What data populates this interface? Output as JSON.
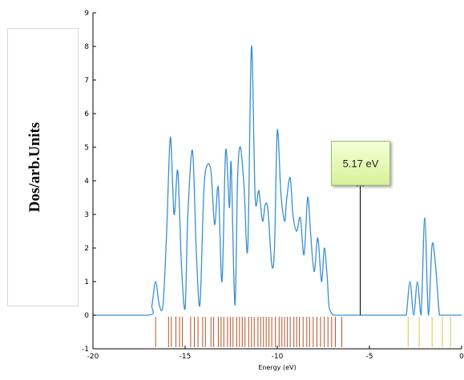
{
  "chart_data": {
    "type": "line",
    "title": "",
    "xlabel": "Energy (eV)",
    "ylabel": "Dos/arb.Units",
    "xlim": [
      -20,
      0
    ],
    "ylim": [
      -1,
      9
    ],
    "xticks": [
      -20,
      -15,
      -10,
      -5,
      0
    ],
    "yticks": [
      -1,
      0,
      1,
      2,
      3,
      4,
      5,
      6,
      7,
      8,
      9
    ],
    "grid": false,
    "series": [
      {
        "color": "#3a8fd0",
        "x": [
          -20,
          -17.0,
          -16.8,
          -16.6,
          -16.4,
          -16.2,
          -16.0,
          -15.8,
          -15.6,
          -15.4,
          -15.2,
          -15.0,
          -14.85,
          -14.6,
          -14.4,
          -14.2,
          -14.0,
          -13.85,
          -13.6,
          -13.4,
          -13.2,
          -13.0,
          -12.8,
          -12.6,
          -12.5,
          -12.3,
          -12.15,
          -12.0,
          -11.8,
          -11.6,
          -11.4,
          -11.2,
          -11.0,
          -10.8,
          -10.65,
          -10.5,
          -10.3,
          -10.15,
          -10.0,
          -9.8,
          -9.6,
          -9.5,
          -9.3,
          -9.15,
          -8.95,
          -8.75,
          -8.55,
          -8.35,
          -8.2,
          -8.0,
          -7.8,
          -7.6,
          -7.45,
          -7.3,
          -7.2,
          -7.1,
          -7.0,
          -6.9,
          -6.75,
          -6.6,
          -6.45,
          -6.3,
          -6.2,
          -6.0,
          -5.9,
          -3.3,
          -3.15,
          -3.0,
          -2.8,
          -2.6,
          -2.4,
          -2.2,
          -2.0,
          -1.8,
          -1.6,
          -1.4,
          -1.2,
          -1.0,
          -0.8,
          -0.6,
          -0.4,
          -0.2,
          0
        ],
        "y": [
          0,
          0,
          0.3,
          1.0,
          0.3,
          0.3,
          2.5,
          5.3,
          3.0,
          4.3,
          1.5,
          0.2,
          3.0,
          4.9,
          2.0,
          0.3,
          3.5,
          4.4,
          4.3,
          2.7,
          3.8,
          1.0,
          4.9,
          3.2,
          4.5,
          0.3,
          4.1,
          5.0,
          3.8,
          2.0,
          8.0,
          3.5,
          3.7,
          2.8,
          3.3,
          3.1,
          1.5,
          2.0,
          5.5,
          3.6,
          2.8,
          3.4,
          4.1,
          3.0,
          2.5,
          2.9,
          1.8,
          3.5,
          2.5,
          1.3,
          2.3,
          1.0,
          2.0,
          1.2,
          0.3,
          0.1,
          0.02,
          0,
          0,
          0,
          0,
          0,
          0,
          0,
          0,
          0,
          0,
          0,
          1.0,
          0.0,
          1.0,
          0.0,
          2.9,
          0.0,
          2.1,
          1.4,
          0,
          0,
          0,
          0,
          0,
          0,
          0
        ]
      }
    ],
    "eigenvalue_levels": {
      "occupied_color": "#b5522a",
      "unoccupied_color": "#d8c64a",
      "occupied_x": [
        -16.6,
        -15.9,
        -15.75,
        -15.5,
        -15.3,
        -15.15,
        -14.7,
        -14.5,
        -14.3,
        -14.05,
        -13.9,
        -13.6,
        -13.45,
        -13.2,
        -13.05,
        -12.9,
        -12.7,
        -12.55,
        -12.4,
        -12.2,
        -12.05,
        -11.9,
        -11.75,
        -11.55,
        -11.4,
        -11.25,
        -11.05,
        -10.9,
        -10.75,
        -10.6,
        -10.45,
        -10.3,
        -10.1,
        -9.9,
        -9.75,
        -9.6,
        -9.45,
        -9.3,
        -9.1,
        -8.95,
        -8.8,
        -8.6,
        -8.4,
        -8.25,
        -8.05,
        -7.85,
        -7.65,
        -7.45,
        -7.25,
        -7.05,
        -6.85,
        -6.5
      ],
      "unoccupied_x": [
        -2.9,
        -2.3,
        -1.6,
        -1.05,
        -0.6
      ]
    },
    "annotations": [
      {
        "text": "5.17 eV",
        "x": -5.5,
        "y_from": 0,
        "y_to": 4.0
      }
    ]
  }
}
